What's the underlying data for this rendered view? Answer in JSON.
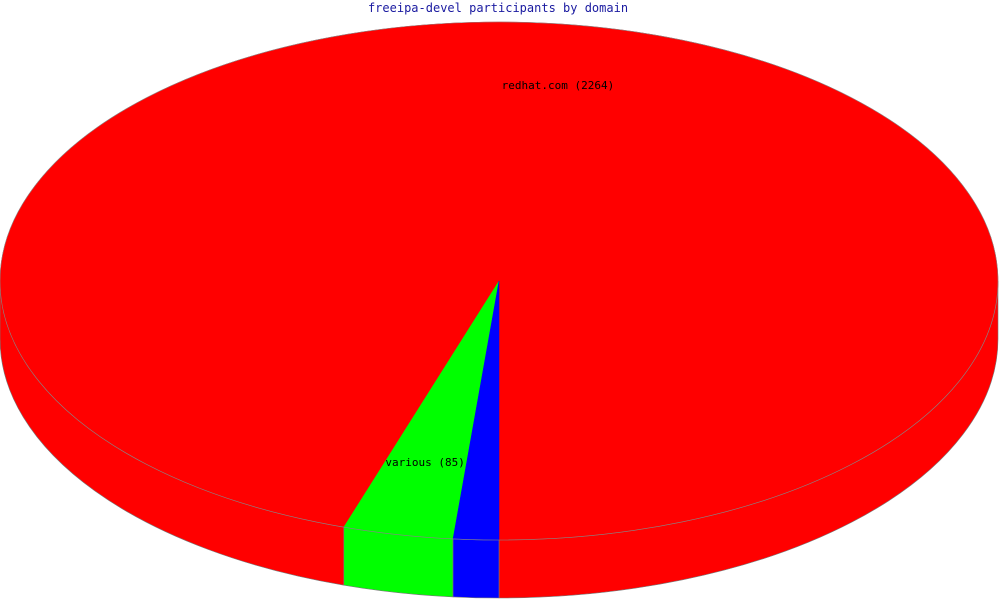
{
  "chart_data": {
    "type": "pie",
    "style": "3d",
    "title": "freeipa-devel participants by domain",
    "slices": [
      {
        "label": "redhat.com (2264)",
        "value": 2264,
        "color": "#ff0000"
      },
      {
        "label": "various (85)",
        "value": 85,
        "color": "#00ff00"
      },
      {
        "label": "",
        "value": 35,
        "color": "#0000ff"
      }
    ]
  }
}
